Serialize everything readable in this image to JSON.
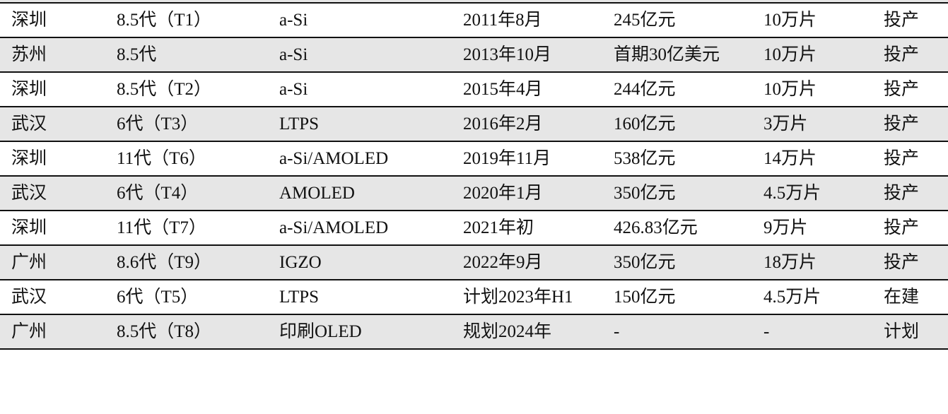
{
  "table": {
    "rows": [
      {
        "city": "深圳",
        "gen": "8.5代（T1）",
        "tech": "a-Si",
        "time": "2011年8月",
        "invest": "245亿元",
        "capacity": "10万片",
        "status": "投产"
      },
      {
        "city": "苏州",
        "gen": "8.5代",
        "tech": "a-Si",
        "time": "2013年10月",
        "invest": "首期30亿美元",
        "capacity": "10万片",
        "status": "投产"
      },
      {
        "city": "深圳",
        "gen": "8.5代（T2）",
        "tech": "a-Si",
        "time": "2015年4月",
        "invest": "244亿元",
        "capacity": "10万片",
        "status": "投产"
      },
      {
        "city": "武汉",
        "gen": "6代（T3）",
        "tech": "LTPS",
        "time": "2016年2月",
        "invest": "160亿元",
        "capacity": "3万片",
        "status": "投产"
      },
      {
        "city": "深圳",
        "gen": "11代（T6）",
        "tech": "a-Si/AMOLED",
        "time": "2019年11月",
        "invest": "538亿元",
        "capacity": "14万片",
        "status": "投产"
      },
      {
        "city": "武汉",
        "gen": "6代（T4）",
        "tech": "AMOLED",
        "time": "2020年1月",
        "invest": "350亿元",
        "capacity": "4.5万片",
        "status": "投产"
      },
      {
        "city": "深圳",
        "gen": "11代（T7）",
        "tech": "a-Si/AMOLED",
        "time": "2021年初",
        "invest": "426.83亿元",
        "capacity": "9万片",
        "status": "投产"
      },
      {
        "city": "广州",
        "gen": "8.6代（T9）",
        "tech": "IGZO",
        "time": "2022年9月",
        "invest": "350亿元",
        "capacity": "18万片",
        "status": "投产"
      },
      {
        "city": "武汉",
        "gen": "6代（T5）",
        "tech": "LTPS",
        "time": "计划2023年H1",
        "invest": "150亿元",
        "capacity": "4.5万片",
        "status": "在建"
      },
      {
        "city": "广州",
        "gen": "8.5代（T8）",
        "tech": "印刷OLED",
        "time": "规划2024年",
        "invest": "-",
        "capacity": "-",
        "status": "计划"
      }
    ]
  }
}
